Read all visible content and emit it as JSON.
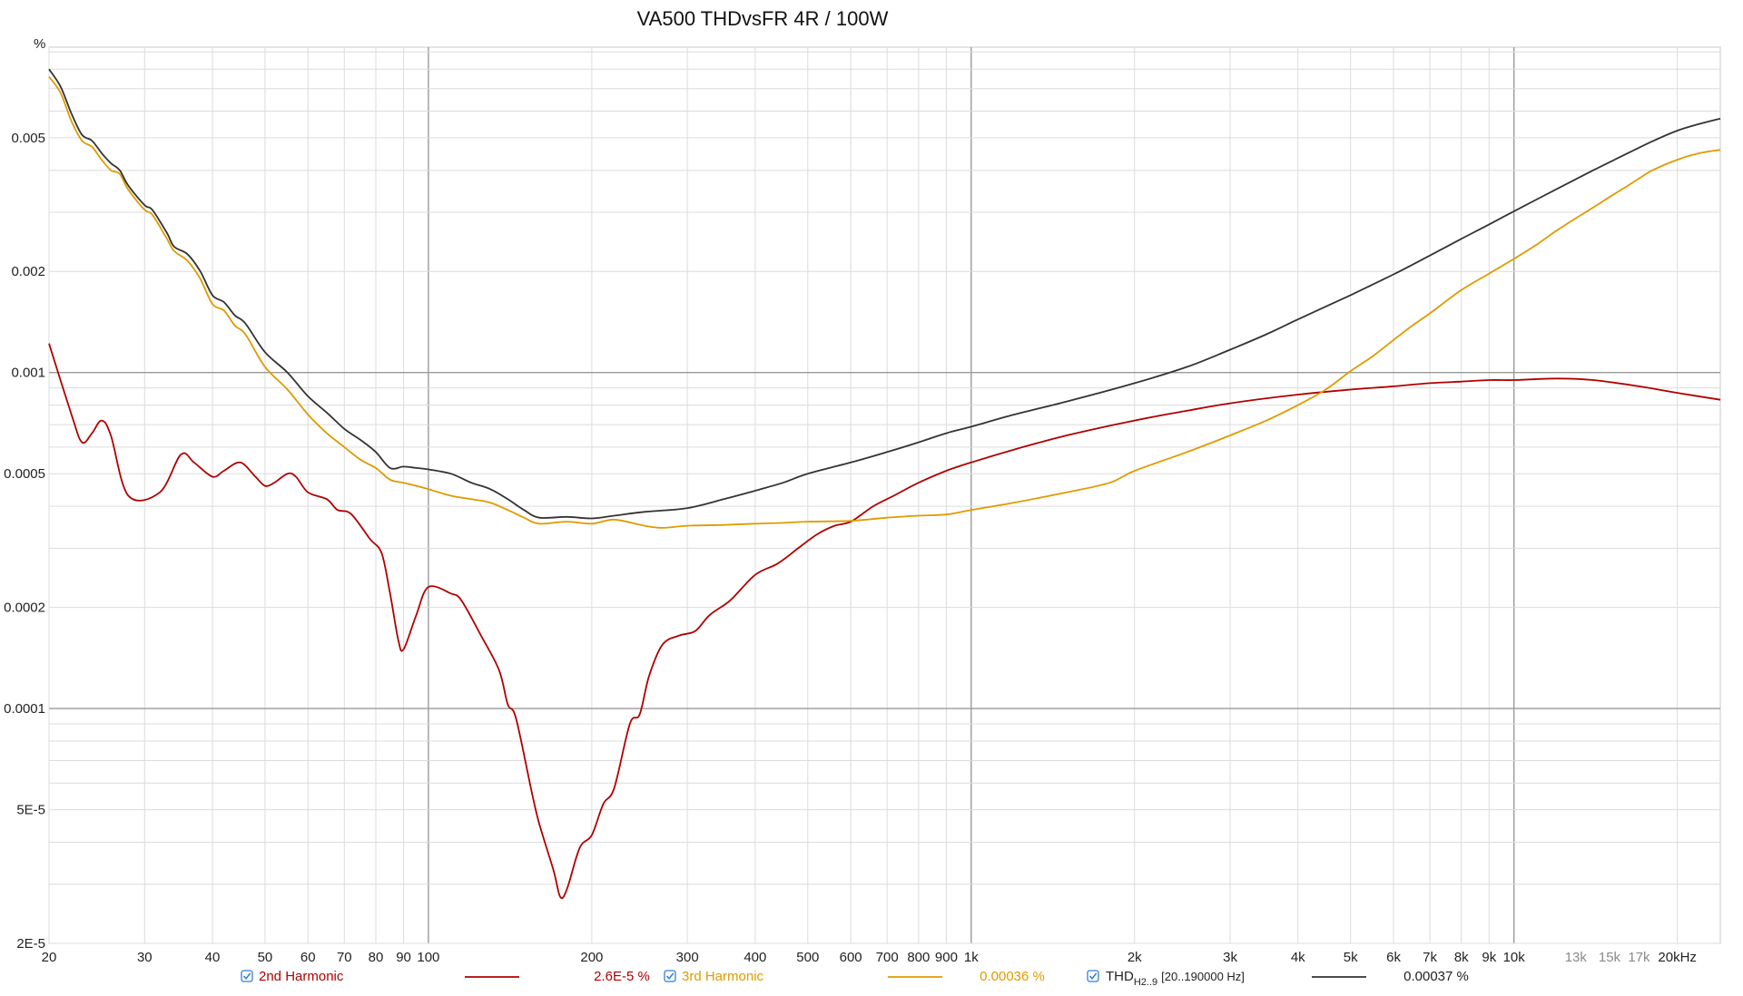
{
  "chart_data": {
    "type": "line",
    "title": "VA500 THDvsFR 4R / 100W",
    "ylabel": "%",
    "xlabel": "",
    "x_scale": "log",
    "y_scale": "log",
    "xlim": [
      20,
      24000
    ],
    "ylim": [
      2e-05,
      0.0093
    ],
    "grid": true,
    "legend_placement": "bottom",
    "x_ticks": [
      {
        "v": 20,
        "label": "20"
      },
      {
        "v": 30,
        "label": "30"
      },
      {
        "v": 40,
        "label": "40"
      },
      {
        "v": 50,
        "label": "50"
      },
      {
        "v": 60,
        "label": "60"
      },
      {
        "v": 70,
        "label": "70"
      },
      {
        "v": 80,
        "label": "80"
      },
      {
        "v": 90,
        "label": "90"
      },
      {
        "v": 100,
        "label": "100"
      },
      {
        "v": 200,
        "label": "200"
      },
      {
        "v": 300,
        "label": "300"
      },
      {
        "v": 400,
        "label": "400"
      },
      {
        "v": 500,
        "label": "500"
      },
      {
        "v": 600,
        "label": "600"
      },
      {
        "v": 700,
        "label": "700"
      },
      {
        "v": 800,
        "label": "800"
      },
      {
        "v": 900,
        "label": "900"
      },
      {
        "v": 1000,
        "label": "1k"
      },
      {
        "v": 2000,
        "label": "2k"
      },
      {
        "v": 3000,
        "label": "3k"
      },
      {
        "v": 4000,
        "label": "4k"
      },
      {
        "v": 5000,
        "label": "5k"
      },
      {
        "v": 6000,
        "label": "6k"
      },
      {
        "v": 7000,
        "label": "7k"
      },
      {
        "v": 8000,
        "label": "8k"
      },
      {
        "v": 9000,
        "label": "9k"
      },
      {
        "v": 10000,
        "label": "10k"
      },
      {
        "v": 13000,
        "label": "13k",
        "dim": true
      },
      {
        "v": 15000,
        "label": "15k",
        "dim": true
      },
      {
        "v": 17000,
        "label": "17k",
        "dim": true
      },
      {
        "v": 20000,
        "label": "20kHz"
      }
    ],
    "y_ticks": [
      {
        "v": 2e-05,
        "label": "2E-5"
      },
      {
        "v": 5e-05,
        "label": "5E-5"
      },
      {
        "v": 0.0001,
        "label": "0.0001"
      },
      {
        "v": 0.0002,
        "label": "0.0002"
      },
      {
        "v": 0.0005,
        "label": "0.0005"
      },
      {
        "v": 0.001,
        "label": "0.001"
      },
      {
        "v": 0.002,
        "label": "0.002"
      },
      {
        "v": 0.005,
        "label": "0.005"
      }
    ],
    "series": [
      {
        "name": "2nd Harmonic",
        "value_label": "2.6E-5 %",
        "color": "#b00000",
        "points": [
          [
            20,
            0.00122
          ],
          [
            22,
            0.00075
          ],
          [
            23,
            0.00062
          ],
          [
            24,
            0.00066
          ],
          [
            25,
            0.00072
          ],
          [
            26,
            0.00065
          ],
          [
            28,
            0.00043
          ],
          [
            32,
            0.00044
          ],
          [
            35,
            0.00057
          ],
          [
            37,
            0.00054
          ],
          [
            40,
            0.00049
          ],
          [
            42,
            0.00051
          ],
          [
            45,
            0.00054
          ],
          [
            48,
            0.00049
          ],
          [
            50,
            0.00046
          ],
          [
            52,
            0.00047
          ],
          [
            55,
            0.0005
          ],
          [
            57,
            0.00049
          ],
          [
            60,
            0.00044
          ],
          [
            65,
            0.00042
          ],
          [
            68,
            0.00039
          ],
          [
            72,
            0.00038
          ],
          [
            78,
            0.00032
          ],
          [
            82,
            0.00029
          ],
          [
            85,
            0.00022
          ],
          [
            88,
            0.00016
          ],
          [
            90,
            0.00015
          ],
          [
            95,
            0.00019
          ],
          [
            100,
            0.00023
          ],
          [
            110,
            0.00022
          ],
          [
            115,
            0.00021
          ],
          [
            125,
            0.000165
          ],
          [
            135,
            0.00013
          ],
          [
            140,
            0.000103
          ],
          [
            145,
            9.35e-05
          ],
          [
            155,
            5.65e-05
          ],
          [
            160,
            4.55e-05
          ],
          [
            170,
            3.3e-05
          ],
          [
            175,
            2.75e-05
          ],
          [
            180,
            2.9e-05
          ],
          [
            190,
            3.85e-05
          ],
          [
            200,
            4.2e-05
          ],
          [
            210,
            5.2e-05
          ],
          [
            220,
            5.8e-05
          ],
          [
            235,
            9e-05
          ],
          [
            245,
            9.6e-05
          ],
          [
            255,
            0.000125
          ],
          [
            270,
            0.000155
          ],
          [
            290,
            0.000165
          ],
          [
            310,
            0.00017
          ],
          [
            330,
            0.00019
          ],
          [
            360,
            0.00021
          ],
          [
            400,
            0.00025
          ],
          [
            440,
            0.00027
          ],
          [
            480,
            0.0003
          ],
          [
            520,
            0.00033
          ],
          [
            560,
            0.00035
          ],
          [
            600,
            0.00036
          ],
          [
            660,
            0.0004
          ],
          [
            720,
            0.00043
          ],
          [
            800,
            0.00047
          ],
          [
            900,
            0.00051
          ],
          [
            1000,
            0.00054
          ],
          [
            1200,
            0.00059
          ],
          [
            1500,
            0.00065
          ],
          [
            2000,
            0.00072
          ],
          [
            2500,
            0.00077
          ],
          [
            3000,
            0.00081
          ],
          [
            4000,
            0.00086
          ],
          [
            5000,
            0.00089
          ],
          [
            6000,
            0.00091
          ],
          [
            7000,
            0.00093
          ],
          [
            8000,
            0.00094
          ],
          [
            9000,
            0.00095
          ],
          [
            10000,
            0.00095
          ],
          [
            12000,
            0.00096
          ],
          [
            14000,
            0.00095
          ],
          [
            17000,
            0.00091
          ],
          [
            20000,
            0.00087
          ],
          [
            24000,
            0.00083
          ]
        ]
      },
      {
        "name": "3rd Harmonic",
        "value_label": "0.00036 %",
        "color": "#e09a00",
        "points": [
          [
            20,
            0.0076
          ],
          [
            21,
            0.0068
          ],
          [
            22,
            0.0056
          ],
          [
            23,
            0.0049
          ],
          [
            24,
            0.0047
          ],
          [
            25,
            0.0043
          ],
          [
            26,
            0.004
          ],
          [
            27,
            0.0039
          ],
          [
            28,
            0.0035
          ],
          [
            30,
            0.00305
          ],
          [
            31,
            0.00295
          ],
          [
            33,
            0.0025
          ],
          [
            34,
            0.0023
          ],
          [
            36,
            0.00215
          ],
          [
            38,
            0.0019
          ],
          [
            40,
            0.0016
          ],
          [
            42,
            0.00153
          ],
          [
            44,
            0.00138
          ],
          [
            46,
            0.0013
          ],
          [
            50,
            0.00104
          ],
          [
            55,
            0.00089
          ],
          [
            60,
            0.00075
          ],
          [
            65,
            0.00066
          ],
          [
            70,
            0.0006
          ],
          [
            75,
            0.00055
          ],
          [
            80,
            0.00052
          ],
          [
            85,
            0.00048
          ],
          [
            90,
            0.00047
          ],
          [
            95,
            0.00046
          ],
          [
            100,
            0.00045
          ],
          [
            110,
            0.00043
          ],
          [
            120,
            0.00042
          ],
          [
            130,
            0.00041
          ],
          [
            140,
            0.00039
          ],
          [
            150,
            0.00037
          ],
          [
            160,
            0.000355
          ],
          [
            180,
            0.00036
          ],
          [
            200,
            0.000355
          ],
          [
            220,
            0.000365
          ],
          [
            250,
            0.00035
          ],
          [
            270,
            0.000345
          ],
          [
            300,
            0.00035
          ],
          [
            350,
            0.000352
          ],
          [
            400,
            0.000355
          ],
          [
            450,
            0.000357
          ],
          [
            500,
            0.00036
          ],
          [
            600,
            0.000362
          ],
          [
            700,
            0.00037
          ],
          [
            800,
            0.000375
          ],
          [
            900,
            0.000378
          ],
          [
            1000,
            0.00039
          ],
          [
            1200,
            0.00041
          ],
          [
            1500,
            0.00044
          ],
          [
            1800,
            0.00047
          ],
          [
            2000,
            0.00051
          ],
          [
            2500,
            0.00058
          ],
          [
            3000,
            0.00065
          ],
          [
            3500,
            0.00072
          ],
          [
            4000,
            0.0008
          ],
          [
            4500,
            0.00089
          ],
          [
            5000,
            0.00101
          ],
          [
            5500,
            0.00112
          ],
          [
            6000,
            0.00125
          ],
          [
            6500,
            0.00138
          ],
          [
            7000,
            0.0015
          ],
          [
            8000,
            0.00176
          ],
          [
            9000,
            0.00197
          ],
          [
            10000,
            0.00218
          ],
          [
            11000,
            0.0024
          ],
          [
            12000,
            0.00265
          ],
          [
            13000,
            0.00288
          ],
          [
            14000,
            0.0031
          ],
          [
            15000,
            0.00333
          ],
          [
            16000,
            0.00355
          ],
          [
            17000,
            0.00378
          ],
          [
            18000,
            0.004
          ],
          [
            20000,
            0.0043
          ],
          [
            22000,
            0.0045
          ],
          [
            24000,
            0.0046
          ]
        ]
      },
      {
        "name": "THD",
        "name_sub": "H2..9",
        "name_suffix": "[20..190000 Hz]",
        "value_label": "0.00037 %",
        "color": "#333333",
        "points": [
          [
            20,
            0.008
          ],
          [
            21,
            0.0071
          ],
          [
            22,
            0.0059
          ],
          [
            23,
            0.0051
          ],
          [
            24,
            0.0049
          ],
          [
            25,
            0.0045
          ],
          [
            26,
            0.0042
          ],
          [
            27,
            0.004
          ],
          [
            28,
            0.0036
          ],
          [
            30,
            0.00315
          ],
          [
            31,
            0.00305
          ],
          [
            33,
            0.0026
          ],
          [
            34,
            0.00237
          ],
          [
            36,
            0.00225
          ],
          [
            38,
            0.002
          ],
          [
            40,
            0.0017
          ],
          [
            42,
            0.00162
          ],
          [
            44,
            0.00148
          ],
          [
            46,
            0.0014
          ],
          [
            50,
            0.00115
          ],
          [
            55,
            0.001
          ],
          [
            60,
            0.00085
          ],
          [
            65,
            0.00076
          ],
          [
            70,
            0.00068
          ],
          [
            75,
            0.00063
          ],
          [
            80,
            0.00058
          ],
          [
            85,
            0.00052
          ],
          [
            90,
            0.000525
          ],
          [
            95,
            0.00052
          ],
          [
            100,
            0.000515
          ],
          [
            110,
            0.0005
          ],
          [
            120,
            0.00047
          ],
          [
            130,
            0.00045
          ],
          [
            140,
            0.00042
          ],
          [
            150,
            0.00039
          ],
          [
            160,
            0.00037
          ],
          [
            180,
            0.000372
          ],
          [
            200,
            0.000368
          ],
          [
            220,
            0.000375
          ],
          [
            250,
            0.000385
          ],
          [
            300,
            0.000395
          ],
          [
            350,
            0.00042
          ],
          [
            400,
            0.000445
          ],
          [
            450,
            0.00047
          ],
          [
            500,
            0.0005
          ],
          [
            600,
            0.00054
          ],
          [
            700,
            0.00058
          ],
          [
            800,
            0.00062
          ],
          [
            900,
            0.00066
          ],
          [
            1000,
            0.00069
          ],
          [
            1200,
            0.00075
          ],
          [
            1500,
            0.00082
          ],
          [
            2000,
            0.00093
          ],
          [
            2500,
            0.00104
          ],
          [
            3000,
            0.00117
          ],
          [
            3500,
            0.0013
          ],
          [
            4000,
            0.00144
          ],
          [
            5000,
            0.0017
          ],
          [
            6000,
            0.00196
          ],
          [
            7000,
            0.00223
          ],
          [
            8000,
            0.0025
          ],
          [
            9000,
            0.00276
          ],
          [
            10000,
            0.00302
          ],
          [
            12000,
            0.00352
          ],
          [
            14000,
            0.004
          ],
          [
            16000,
            0.00445
          ],
          [
            18000,
            0.00488
          ],
          [
            20000,
            0.00525
          ],
          [
            22000,
            0.0055
          ],
          [
            24000,
            0.0057
          ]
        ]
      }
    ]
  },
  "colors": {
    "grid_major": "#9a9a9a",
    "grid_minor": "#dcdcdc",
    "checkbox": "#2f7fd6"
  }
}
